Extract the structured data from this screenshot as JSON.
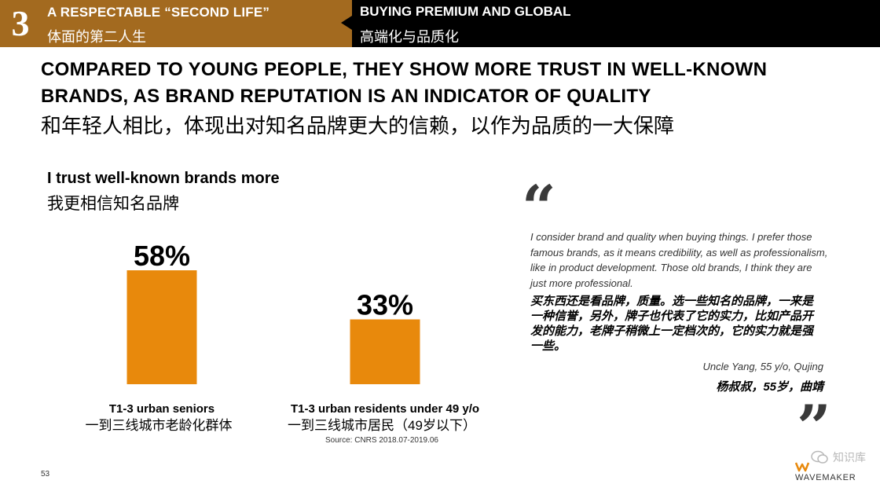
{
  "header": {
    "section_number": "3",
    "left_title_en": "A RESPECTABLE “SECOND LIFE”",
    "left_title_cn": "体面的第二人生",
    "right_title_en": "BUYING PREMIUM AND GLOBAL",
    "right_title_cn": "高端化与品质化",
    "colors": {
      "left_bg": "#a36a1f",
      "right_bg": "#000000"
    }
  },
  "headline": {
    "en": "COMPARED TO YOUNG PEOPLE, THEY SHOW MORE TRUST IN WELL-KNOWN BRANDS, AS BRAND REPUTATION IS AN INDICATOR OF QUALITY",
    "cn": "和年轻人相比，体现出对知名品牌更大的信赖，以作为品质的一大保障"
  },
  "chart_title": {
    "en": "I trust well-known brands more",
    "cn": "我更相信知名品牌"
  },
  "chart_data": {
    "type": "bar",
    "title": "I trust well-known brands more",
    "categories": [
      {
        "en": "T1-3 urban seniors",
        "cn": "一到三线城市老龄化群体"
      },
      {
        "en": "T1-3 urban residents under 49 y/o",
        "cn": "一到三线城市居民（49岁以下）"
      }
    ],
    "values": [
      58,
      33
    ],
    "value_labels": [
      "58%",
      "33%"
    ],
    "ylim": [
      0,
      60
    ],
    "unit": "%",
    "bar_color": "#e8890c",
    "grid": false
  },
  "source": "Source: CNRS 2018.07-2019.06",
  "quote": {
    "text_en": "I consider brand and quality when buying things. I prefer those famous brands, as it means credibility, as well as professionalism, like in product development. Those old brands, I think they are just more professional.",
    "text_cn": "买东西还是看品牌，质量。选一些知名的品牌，一来是一种信誉，另外，牌子也代表了它的实力，比如产品开发的能力，老牌子稍微上一定档次的，它的实力就是强一些。",
    "attribution_en": "Uncle Yang, 55 y/o, Qujing",
    "attribution_cn": "杨叔叔，55岁，曲靖",
    "open_mark": "“",
    "close_mark": "”"
  },
  "footer": {
    "page_number": "53",
    "brand_name": "WAVEMAKER",
    "watermark_text": "知识库"
  }
}
